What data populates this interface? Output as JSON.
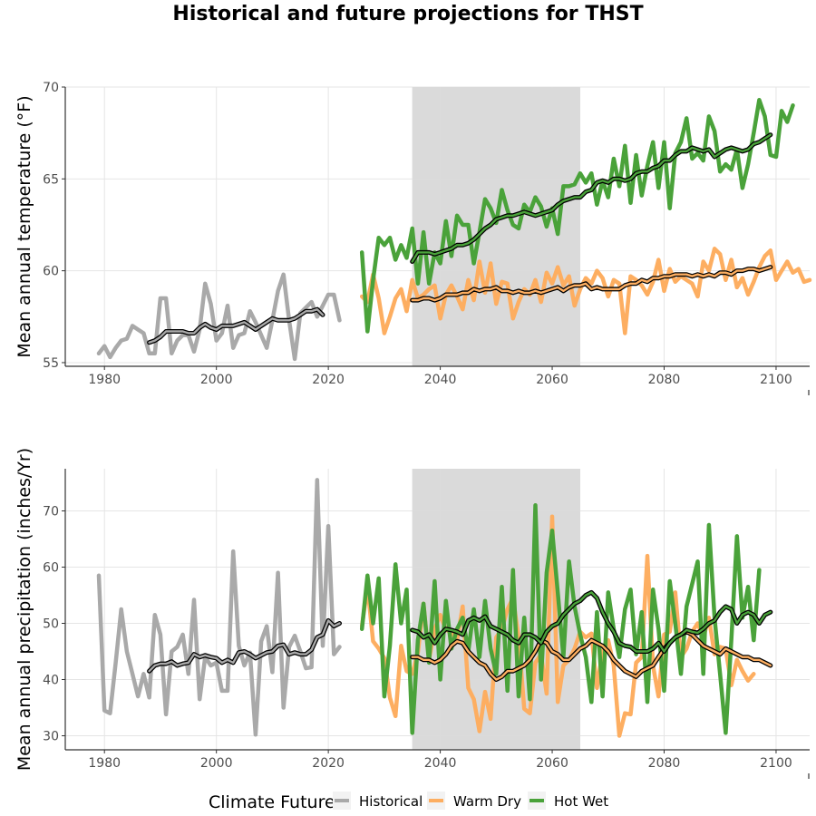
{
  "title": "Historical and future projections for THST",
  "colors": {
    "historical": "#a9a9a9",
    "warm_dry": "#fdae61",
    "hot_wet": "#4aa23a",
    "shade": "#d9d9d9",
    "grid": "#e5e5e5",
    "smooth_outline": "#000000"
  },
  "legend": {
    "title": "Climate Future",
    "items": [
      {
        "key": "historical",
        "label": "Historical"
      },
      {
        "key": "warm_dry",
        "label": "Warm Dry"
      },
      {
        "key": "hot_wet",
        "label": "Hot Wet"
      }
    ]
  },
  "chart_data": [
    {
      "type": "line",
      "ylabel": "Mean annual temperature (°F)",
      "xlabel": "",
      "xlim": [
        1973,
        2106
      ],
      "ylim": [
        54.8,
        70
      ],
      "xticks": [
        1980,
        2000,
        2020,
        2040,
        2060,
        2080,
        2100
      ],
      "yticks": [
        55,
        60,
        65,
        70
      ],
      "shaded_period": [
        2035,
        2065
      ],
      "grid": true,
      "series": [
        {
          "name": "Historical",
          "color_key": "historical",
          "x_start": 1979,
          "values": [
            55.5,
            55.9,
            55.3,
            55.8,
            56.2,
            56.3,
            57.0,
            56.8,
            56.6,
            55.5,
            55.5,
            58.5,
            58.5,
            55.5,
            56.2,
            56.5,
            56.5,
            55.6,
            56.8,
            59.3,
            58.2,
            56.2,
            56.6,
            58.1,
            55.8,
            56.5,
            56.6,
            57.8,
            57.2,
            56.5,
            55.8,
            57.3,
            58.9,
            59.8,
            57.3,
            55.2,
            57.7,
            58.0,
            58.3,
            57.5,
            58.1,
            58.7,
            58.7,
            57.3
          ]
        },
        {
          "name": "Historical (smoothed)",
          "color_key": "historical",
          "smoothed": true,
          "x_start": 1988,
          "values": [
            56.1,
            56.2,
            56.4,
            56.7,
            56.7,
            56.7,
            56.7,
            56.6,
            56.6,
            56.9,
            57.1,
            56.9,
            56.8,
            57.0,
            57.0,
            57.0,
            57.1,
            57.2,
            57.0,
            56.8,
            57.0,
            57.2,
            57.4,
            57.3,
            57.3,
            57.3,
            57.4,
            57.6,
            57.8,
            57.8,
            57.9,
            57.6
          ]
        },
        {
          "name": "Warm Dry",
          "color_key": "warm_dry",
          "x_start": 2026,
          "values": [
            58.6,
            58.3,
            59.8,
            58.5,
            56.6,
            57.5,
            58.5,
            59.0,
            57.8,
            59.5,
            58.5,
            58.7,
            59.0,
            59.2,
            57.4,
            58.7,
            59.2,
            58.6,
            57.9,
            59.5,
            58.4,
            60.5,
            58.8,
            60.4,
            58.2,
            59.4,
            59.3,
            57.4,
            58.3,
            59.0,
            58.7,
            59.5,
            58.3,
            59.9,
            59.3,
            60.2,
            59.2,
            59.7,
            58.1,
            59.0,
            59.6,
            59.3,
            60.0,
            59.6,
            58.6,
            59.5,
            59.3,
            56.6,
            59.7,
            59.5,
            59.2,
            58.7,
            59.4,
            60.6,
            58.9,
            60.1,
            59.4,
            59.7,
            59.5,
            59.3,
            58.6,
            60.5,
            60.0,
            61.2,
            60.9,
            59.5,
            60.6,
            59.1,
            59.6,
            58.7,
            59.4,
            60.2,
            60.8,
            61.1,
            59.5,
            60.0,
            60.5,
            59.9,
            60.1,
            59.4,
            59.5
          ]
        },
        {
          "name": "Warm Dry (smoothed)",
          "color_key": "warm_dry",
          "smoothed": true,
          "x_start": 2035,
          "values": [
            58.4,
            58.4,
            58.5,
            58.5,
            58.4,
            58.5,
            58.7,
            58.7,
            58.7,
            58.8,
            58.8,
            59.0,
            58.9,
            59.0,
            59.0,
            59.1,
            58.9,
            58.9,
            58.8,
            58.9,
            58.8,
            58.8,
            58.9,
            58.8,
            58.9,
            59.0,
            59.1,
            58.9,
            59.1,
            59.2,
            59.2,
            59.3,
            59.0,
            59.1,
            59.0,
            59.0,
            59.0,
            59.0,
            59.2,
            59.3,
            59.3,
            59.5,
            59.4,
            59.6,
            59.6,
            59.7,
            59.7,
            59.8,
            59.8,
            59.8,
            59.7,
            59.8,
            59.7,
            59.8,
            59.7,
            59.9,
            59.9,
            59.8,
            60.0,
            60.0,
            60.1,
            60.1,
            60.0,
            60.1,
            60.2
          ]
        },
        {
          "name": "Hot Wet",
          "color_key": "hot_wet",
          "x_start": 2026,
          "values": [
            61.0,
            56.7,
            59.5,
            61.8,
            61.4,
            61.8,
            60.6,
            61.4,
            60.7,
            62.3,
            59.3,
            62.1,
            59.3,
            61.0,
            60.4,
            62.7,
            60.8,
            63.0,
            62.5,
            62.5,
            60.4,
            62.1,
            63.9,
            63.4,
            62.6,
            64.4,
            63.3,
            62.5,
            62.3,
            63.6,
            63.2,
            64.0,
            63.5,
            62.4,
            63.4,
            62.0,
            64.6,
            64.6,
            64.7,
            65.3,
            64.8,
            65.3,
            63.6,
            64.9,
            64.0,
            66.1,
            64.6,
            66.8,
            63.7,
            66.3,
            64.1,
            65.7,
            67.0,
            64.5,
            67.0,
            63.4,
            66.4,
            67.0,
            68.3,
            66.1,
            66.4,
            66.0,
            68.4,
            67.6,
            65.4,
            65.8,
            65.5,
            66.6,
            64.5,
            65.8,
            67.5,
            69.3,
            68.4,
            66.3,
            66.2,
            68.7,
            68.1,
            69.0
          ]
        },
        {
          "name": "Hot Wet (smoothed)",
          "color_key": "hot_wet",
          "smoothed": true,
          "x_start": 2035,
          "values": [
            60.5,
            61.0,
            61.0,
            61.0,
            60.9,
            61.0,
            61.1,
            61.2,
            61.4,
            61.4,
            61.5,
            61.7,
            62.0,
            62.3,
            62.5,
            62.8,
            62.9,
            63.0,
            63.0,
            63.1,
            63.2,
            63.1,
            63.0,
            63.1,
            63.2,
            63.3,
            63.6,
            63.8,
            63.9,
            64.0,
            64.0,
            64.3,
            64.4,
            64.8,
            64.9,
            64.8,
            65.0,
            65.0,
            64.9,
            65.0,
            65.3,
            65.4,
            65.4,
            65.6,
            65.7,
            66.0,
            66.0,
            66.3,
            66.5,
            66.5,
            66.7,
            66.6,
            66.5,
            66.6,
            66.2,
            66.4,
            66.6,
            66.7,
            66.6,
            66.5,
            66.6,
            66.9,
            67.0,
            67.2,
            67.4
          ]
        }
      ]
    },
    {
      "type": "line",
      "ylabel": "Mean annual precipitation (inches/Yr)",
      "xlabel": "",
      "xlim": [
        1973,
        2106
      ],
      "ylim": [
        27.5,
        77.5
      ],
      "xticks": [
        1980,
        2000,
        2020,
        2040,
        2060,
        2080,
        2100
      ],
      "yticks": [
        30,
        40,
        50,
        60,
        70
      ],
      "shaded_period": [
        2035,
        2065
      ],
      "grid": true,
      "series": [
        {
          "name": "Historical",
          "color_key": "historical",
          "x_start": 1979,
          "values": [
            58.5,
            34.5,
            34.0,
            43.0,
            52.5,
            45.0,
            41.0,
            37.0,
            41.0,
            36.8,
            51.5,
            48.0,
            33.8,
            45.0,
            45.8,
            48.0,
            41.0,
            54.2,
            36.5,
            44.0,
            42.5,
            43.0,
            38.0,
            38.0,
            62.8,
            46.0,
            42.5,
            44.8,
            30.2,
            46.8,
            49.5,
            41.3,
            59.0,
            35.0,
            45.8,
            47.8,
            45.0,
            42.0,
            42.2,
            75.5,
            46.0,
            67.3,
            44.5,
            45.8
          ]
        },
        {
          "name": "Historical (smoothed)",
          "color_key": "historical",
          "smoothed": true,
          "x_start": 1988,
          "values": [
            41.5,
            42.5,
            42.8,
            42.8,
            43.2,
            42.5,
            42.8,
            43.0,
            44.5,
            44.0,
            44.3,
            44.0,
            43.8,
            43.0,
            43.5,
            43.0,
            44.8,
            45.0,
            44.5,
            43.8,
            44.3,
            44.8,
            45.0,
            46.0,
            46.2,
            44.5,
            44.8,
            44.5,
            44.5,
            45.3,
            47.5,
            48.0,
            50.5,
            49.5,
            50.0
          ]
        },
        {
          "name": "Warm Dry",
          "color_key": "warm_dry",
          "x_start": 2026,
          "values": [
            49.5,
            56.5,
            46.8,
            45.5,
            43.8,
            36.8,
            33.5,
            46.0,
            41.5,
            41.0,
            44.8,
            53.5,
            43.5,
            49.0,
            51.5,
            48.8,
            48.5,
            47.0,
            53.0,
            38.5,
            36.5,
            30.8,
            37.8,
            33.0,
            47.5,
            49.0,
            52.5,
            54.5,
            47.5,
            34.8,
            34.0,
            43.0,
            44.5,
            37.5,
            69.0,
            36.0,
            42.5,
            43.5,
            45.5,
            48.5,
            47.5,
            48.2,
            38.5,
            45.0,
            47.0,
            42.5,
            30.0,
            34.0,
            33.8,
            43.0,
            44.0,
            62.0,
            42.5,
            37.0,
            48.0,
            48.5,
            55.5,
            44.0,
            45.5,
            48.5,
            50.0,
            47.5,
            51.0,
            44.5,
            45.8,
            45.5,
            39.0,
            43.5,
            41.5,
            39.8,
            41.0
          ]
        },
        {
          "name": "Warm Dry (smoothed)",
          "color_key": "warm_dry",
          "smoothed": true,
          "x_start": 2035,
          "values": [
            44.0,
            44.0,
            43.5,
            43.5,
            43.0,
            43.5,
            44.5,
            46.0,
            46.8,
            46.5,
            45.0,
            44.0,
            43.0,
            42.5,
            41.0,
            40.0,
            40.5,
            41.5,
            41.5,
            42.0,
            42.5,
            43.5,
            45.0,
            47.0,
            46.5,
            45.0,
            44.5,
            43.5,
            43.5,
            44.5,
            45.5,
            46.0,
            47.0,
            46.5,
            46.0,
            45.0,
            43.5,
            42.5,
            41.5,
            41.0,
            40.5,
            41.5,
            42.0,
            42.5,
            44.0,
            45.5,
            46.5,
            47.5,
            48.0,
            48.5,
            48.0,
            47.0,
            46.0,
            45.5,
            45.0,
            44.5,
            45.5,
            45.0,
            44.5,
            44.0,
            44.0,
            43.5,
            43.5,
            43.0,
            42.5
          ]
        },
        {
          "name": "Hot Wet",
          "color_key": "hot_wet",
          "x_start": 2026,
          "values": [
            49.0,
            58.5,
            50.0,
            58.0,
            37.0,
            46.0,
            60.5,
            50.0,
            56.0,
            30.5,
            47.0,
            53.5,
            43.0,
            57.5,
            40.0,
            54.0,
            45.5,
            49.0,
            51.0,
            45.0,
            52.5,
            44.0,
            54.0,
            45.5,
            41.0,
            56.5,
            38.0,
            59.5,
            37.0,
            51.0,
            36.5,
            71.0,
            40.0,
            59.0,
            66.5,
            55.5,
            44.0,
            61.0,
            53.0,
            48.0,
            44.0,
            36.0,
            52.0,
            37.0,
            55.5,
            49.0,
            44.0,
            52.5,
            56.0,
            44.5,
            52.0,
            36.0,
            56.0,
            49.0,
            38.0,
            57.5,
            50.0,
            41.0,
            53.0,
            57.0,
            61.0,
            41.0,
            67.5,
            51.0,
            41.0,
            30.5,
            47.0,
            65.5,
            51.0,
            56.5,
            47.0,
            59.5
          ]
        },
        {
          "name": "Hot Wet (smoothed)",
          "color_key": "hot_wet",
          "smoothed": true,
          "x_start": 2035,
          "values": [
            48.8,
            48.5,
            47.5,
            48.0,
            46.5,
            48.0,
            49.0,
            48.8,
            48.5,
            48.0,
            50.5,
            51.0,
            50.5,
            51.2,
            49.5,
            49.0,
            48.5,
            48.0,
            47.0,
            46.5,
            48.0,
            48.0,
            47.5,
            46.5,
            48.5,
            49.5,
            50.0,
            51.5,
            52.5,
            53.5,
            54.0,
            55.0,
            55.5,
            54.5,
            52.0,
            50.0,
            48.5,
            46.5,
            46.0,
            45.8,
            45.0,
            45.0,
            45.0,
            45.5,
            46.5,
            45.0,
            46.5,
            47.5,
            48.0,
            48.8,
            48.5,
            48.3,
            49.0,
            50.0,
            50.5,
            52.0,
            53.0,
            52.5,
            50.0,
            51.5,
            52.0,
            51.5,
            50.0,
            51.5,
            52.0
          ]
        }
      ]
    }
  ]
}
